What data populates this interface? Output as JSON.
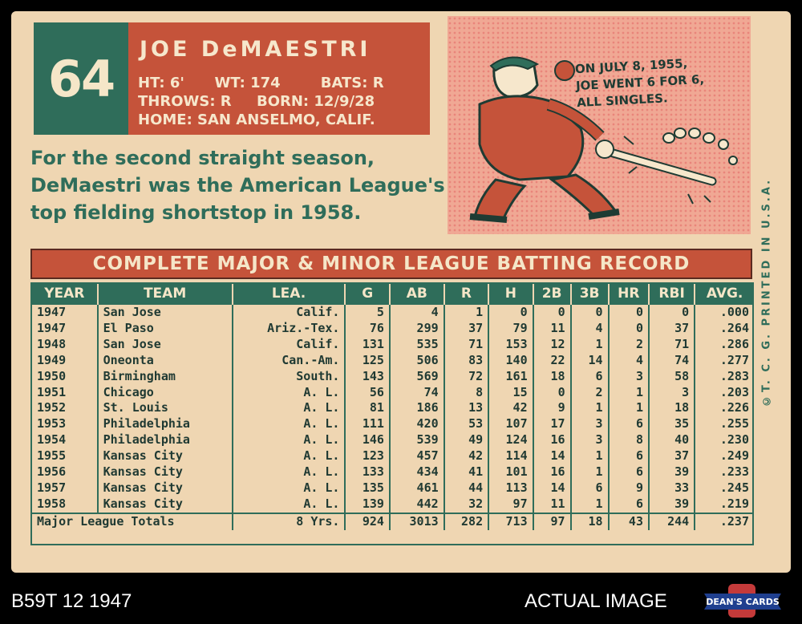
{
  "card": {
    "number": "64",
    "name": "JOE   DeMAESTRI",
    "bio_line1": "HT: 6'      WT: 174        BATS: R",
    "bio_line2": "THROWS: R     BORN: 12/9/28",
    "bio_line3": "HOME: SAN ANSELMO, CALIF.",
    "blurb": "For the second straight season, DeMaestri was the American League's top fielding shortstop in 1958.",
    "cartoon_caption": "ON JULY 8, 1955,\nJOE WENT 6 FOR 6,\nALL SINGLES.",
    "side_text": "©T. C. G.  PRINTED  IN  U.S.A.",
    "record_title": "COMPLETE MAJOR & MINOR LEAGUE BATTING RECORD"
  },
  "stats": {
    "headers": [
      "YEAR",
      "TEAM",
      "LEA.",
      "G",
      "AB",
      "R",
      "H",
      "2B",
      "3B",
      "HR",
      "RBI",
      "AVG."
    ],
    "rows": [
      [
        "1947",
        "San Jose",
        "Calif.",
        "5",
        "4",
        "1",
        "0",
        "0",
        "0",
        "0",
        "0",
        ".000"
      ],
      [
        "1947",
        "El Paso",
        "Ariz.-Tex.",
        "76",
        "299",
        "37",
        "79",
        "11",
        "4",
        "0",
        "37",
        ".264"
      ],
      [
        "1948",
        "San Jose",
        "Calif.",
        "131",
        "535",
        "71",
        "153",
        "12",
        "1",
        "2",
        "71",
        ".286"
      ],
      [
        "1949",
        "Oneonta",
        "Can.-Am.",
        "125",
        "506",
        "83",
        "140",
        "22",
        "14",
        "4",
        "74",
        ".277"
      ],
      [
        "1950",
        "Birmingham",
        "South.",
        "143",
        "569",
        "72",
        "161",
        "18",
        "6",
        "3",
        "58",
        ".283"
      ],
      [
        "1951",
        "Chicago",
        "A. L.",
        "56",
        "74",
        "8",
        "15",
        "0",
        "2",
        "1",
        "3",
        ".203"
      ],
      [
        "1952",
        "St. Louis",
        "A. L.",
        "81",
        "186",
        "13",
        "42",
        "9",
        "1",
        "1",
        "18",
        ".226"
      ],
      [
        "1953",
        "Philadelphia",
        "A. L.",
        "111",
        "420",
        "53",
        "107",
        "17",
        "3",
        "6",
        "35",
        ".255"
      ],
      [
        "1954",
        "Philadelphia",
        "A. L.",
        "146",
        "539",
        "49",
        "124",
        "16",
        "3",
        "8",
        "40",
        ".230"
      ],
      [
        "1955",
        "Kansas City",
        "A. L.",
        "123",
        "457",
        "42",
        "114",
        "14",
        "1",
        "6",
        "37",
        ".249"
      ],
      [
        "1956",
        "Kansas City",
        "A. L.",
        "133",
        "434",
        "41",
        "101",
        "16",
        "1",
        "6",
        "39",
        ".233"
      ],
      [
        "1957",
        "Kansas City",
        "A. L.",
        "135",
        "461",
        "44",
        "113",
        "14",
        "6",
        "9",
        "33",
        ".245"
      ],
      [
        "1958",
        "Kansas City",
        "A. L.",
        "139",
        "442",
        "32",
        "97",
        "11",
        "1",
        "6",
        "39",
        ".219"
      ]
    ],
    "totals": [
      "Major League Totals",
      "8 Yrs.",
      "924",
      "3013",
      "282",
      "713",
      "97",
      "18",
      "43",
      "244",
      ".237"
    ]
  },
  "footer": {
    "left": "B59T 12 1947",
    "right": "ACTUAL IMAGE",
    "logo_text": "DEAN'S CARDS"
  },
  "colors": {
    "green": "#2f6d5a",
    "red": "#c5533a",
    "card": "#efd6b2"
  }
}
